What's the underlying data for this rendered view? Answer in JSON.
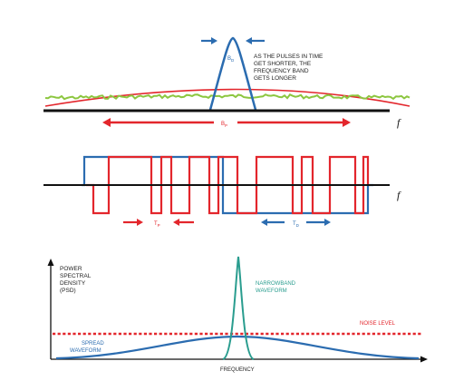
{
  "panel1": {
    "narrow_band_label": "B",
    "narrow_band_sub": "D",
    "annotation_lines": [
      "AS THE PULSES IN TIME",
      "GET SHORTER, THE",
      "FREQUENCY BAND",
      "GETS LONGER"
    ],
    "spread_band_label": "B",
    "spread_band_sub": "P",
    "axis_label": "f"
  },
  "panel2": {
    "pulse_label": "T",
    "pulse_sub": "P",
    "data_label": "T",
    "data_sub": "D",
    "axis_label": "f"
  },
  "panel3": {
    "y_axis_lines": [
      "POWER",
      "SPECTRAL",
      "DENSITY",
      "(PSD)"
    ],
    "narrowband_lines": [
      "NARROWBAND",
      "WAVEFORM"
    ],
    "noise_label": "NOISE LEVEL",
    "spread_lines": [
      "SPREAD",
      "WAVEFORM"
    ],
    "x_axis_label": "FREQUENCY"
  },
  "colors": {
    "red": "#e3262c",
    "blue": "#2b6cb0",
    "green": "#8cc63f",
    "teal": "#2a9d8f",
    "axis": "#111111"
  }
}
